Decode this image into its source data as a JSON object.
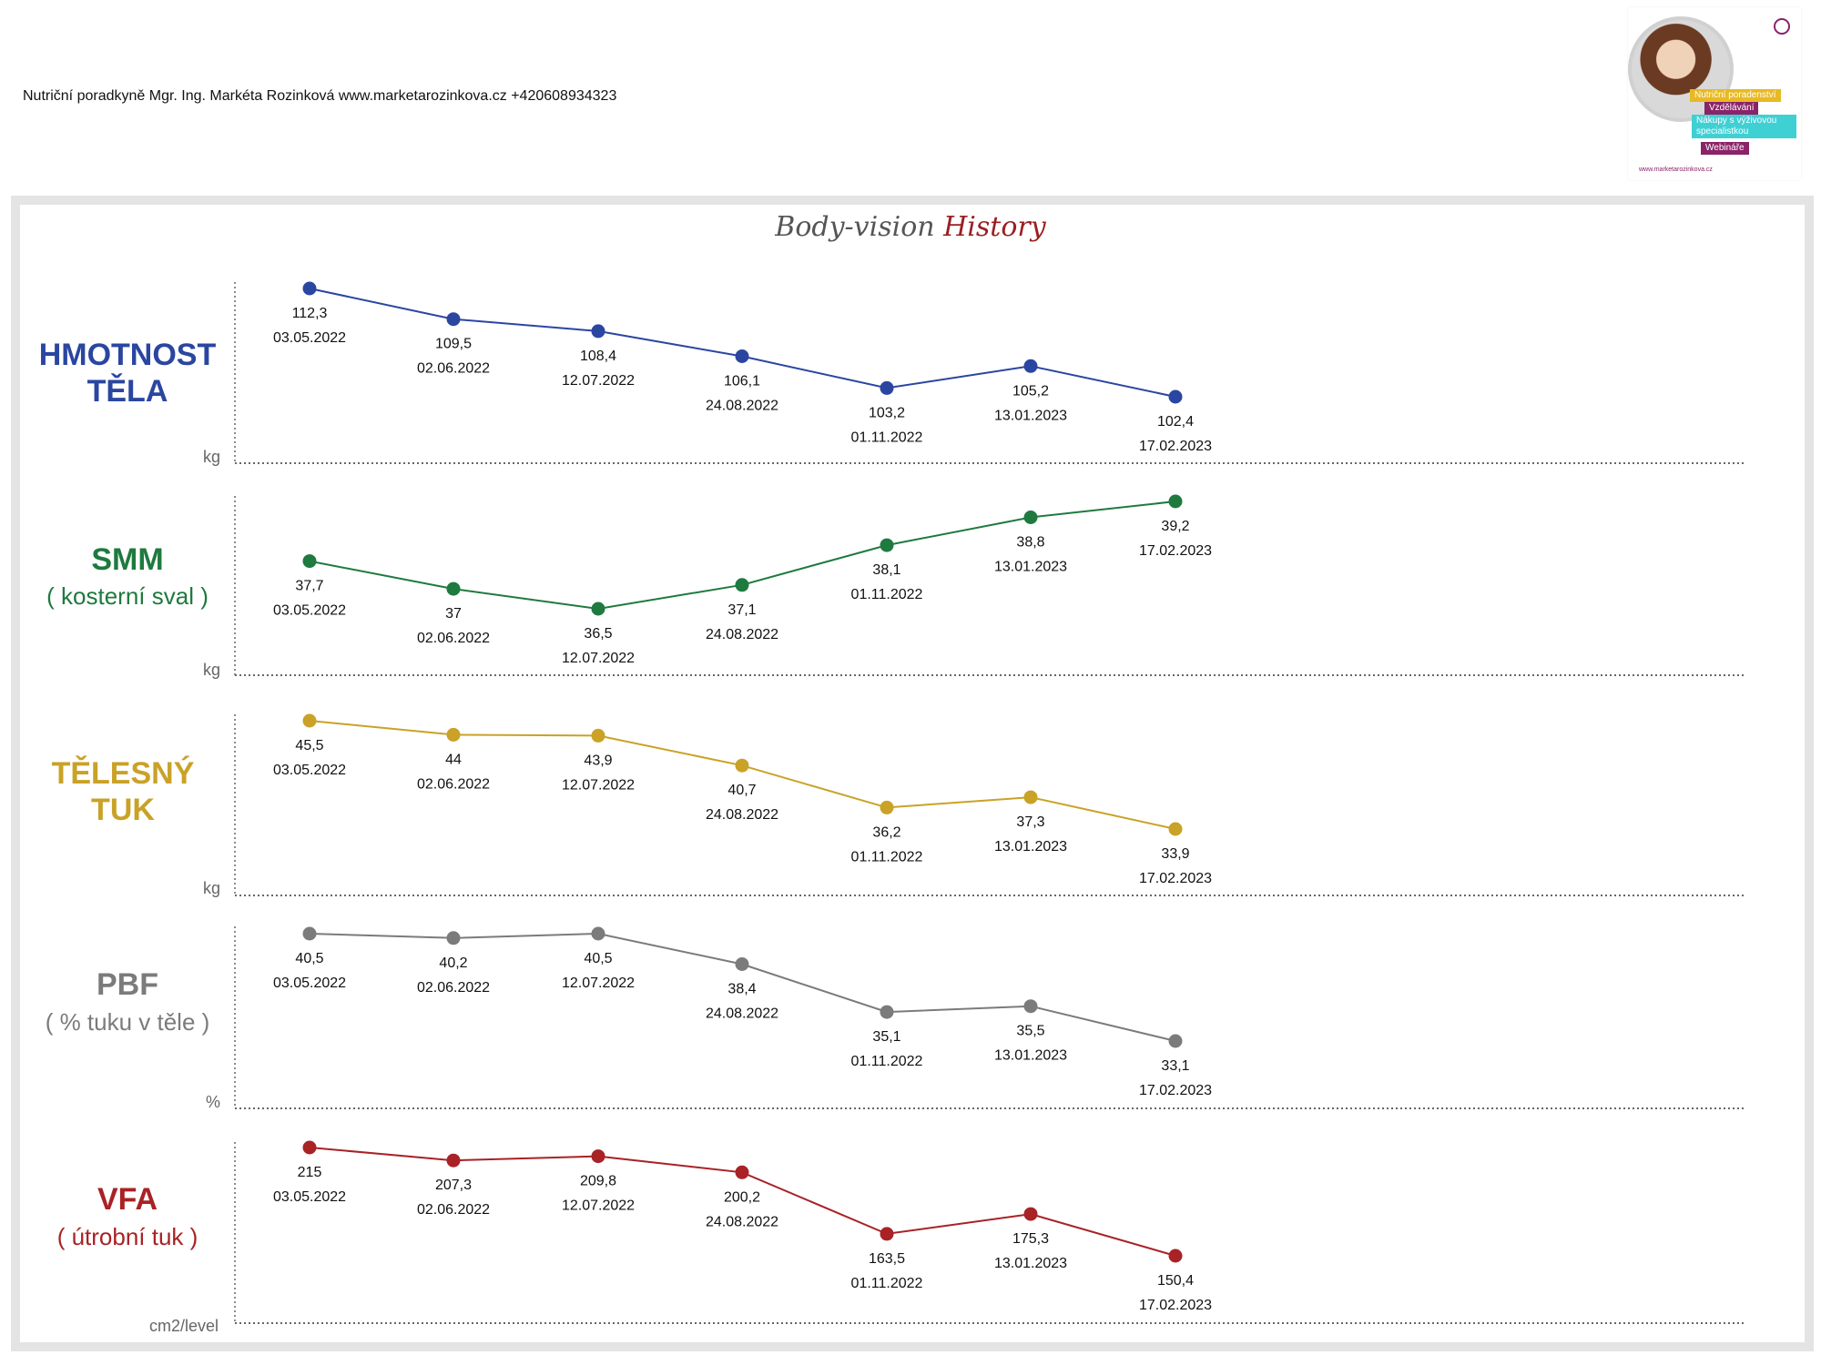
{
  "header": {
    "text": "Nutriční poradkyně Mgr. Ing. Markéta Rozinková www.marketarozinkova.cz +420608934323"
  },
  "logo": {
    "tags": [
      "Nutriční poradenství",
      "Vzdělávání",
      "Nákupy s výživovou specialistkou",
      "Webináře"
    ],
    "site": "www.marketarozinkova.cz",
    "tag_colors": [
      "#e8b923",
      "#8a2368",
      "#3fd0d4",
      "#8a2368"
    ]
  },
  "title": {
    "part1": "Body-vision",
    "part2": "History"
  },
  "chart_data": [
    {
      "type": "line",
      "label": "HMOTNOST TĚLA",
      "sublabel": "",
      "unit": "kg",
      "color": "#2a46a0",
      "x": [
        "03.05.2022",
        "02.06.2022",
        "12.07.2022",
        "24.08.2022",
        "01.11.2022",
        "13.01.2023",
        "17.02.2023"
      ],
      "values": [
        112.3,
        109.5,
        108.4,
        106.1,
        103.2,
        105.2,
        102.4
      ],
      "value_labels": [
        "112,3",
        "109,5",
        "108,4",
        "106,1",
        "103,2",
        "105,2",
        "102,4"
      ]
    },
    {
      "type": "line",
      "label": "SMM",
      "sublabel": "( kosterní sval )",
      "unit": "kg",
      "color": "#1e7a3e",
      "x": [
        "03.05.2022",
        "02.06.2022",
        "12.07.2022",
        "24.08.2022",
        "01.11.2022",
        "13.01.2023",
        "17.02.2023"
      ],
      "values": [
        37.7,
        37,
        36.5,
        37.1,
        38.1,
        38.8,
        39.2
      ],
      "value_labels": [
        "37,7",
        "37",
        "36,5",
        "37,1",
        "38,1",
        "38,8",
        "39,2"
      ]
    },
    {
      "type": "line",
      "label": "TĚLESNÝ TUK",
      "sublabel": "",
      "unit": "kg",
      "color": "#c9a227",
      "x": [
        "03.05.2022",
        "02.06.2022",
        "12.07.2022",
        "24.08.2022",
        "01.11.2022",
        "13.01.2023",
        "17.02.2023"
      ],
      "values": [
        45.5,
        44,
        43.9,
        40.7,
        36.2,
        37.3,
        33.9
      ],
      "value_labels": [
        "45,5",
        "44",
        "43,9",
        "40,7",
        "36,2",
        "37,3",
        "33,9"
      ]
    },
    {
      "type": "line",
      "label": "PBF",
      "sublabel": "( % tuku v těle )",
      "unit": "%",
      "color": "#7b7b7b",
      "x": [
        "03.05.2022",
        "02.06.2022",
        "12.07.2022",
        "24.08.2022",
        "01.11.2022",
        "13.01.2023",
        "17.02.2023"
      ],
      "values": [
        40.5,
        40.2,
        40.5,
        38.4,
        35.1,
        35.5,
        33.1
      ],
      "value_labels": [
        "40,5",
        "40,2",
        "40,5",
        "38,4",
        "35,1",
        "35,5",
        "33,1"
      ]
    },
    {
      "type": "line",
      "label": "VFA",
      "sublabel": "( útrobní tuk )",
      "unit": "cm2/level",
      "color": "#a82226",
      "x": [
        "03.05.2022",
        "02.06.2022",
        "12.07.2022",
        "24.08.2022",
        "01.11.2022",
        "13.01.2023",
        "17.02.2023"
      ],
      "values": [
        215,
        207.3,
        209.8,
        200.2,
        163.5,
        175.3,
        150.4
      ],
      "value_labels": [
        "215",
        "207,3",
        "209,8",
        "200,2",
        "163,5",
        "175,3",
        "150,4"
      ]
    }
  ]
}
